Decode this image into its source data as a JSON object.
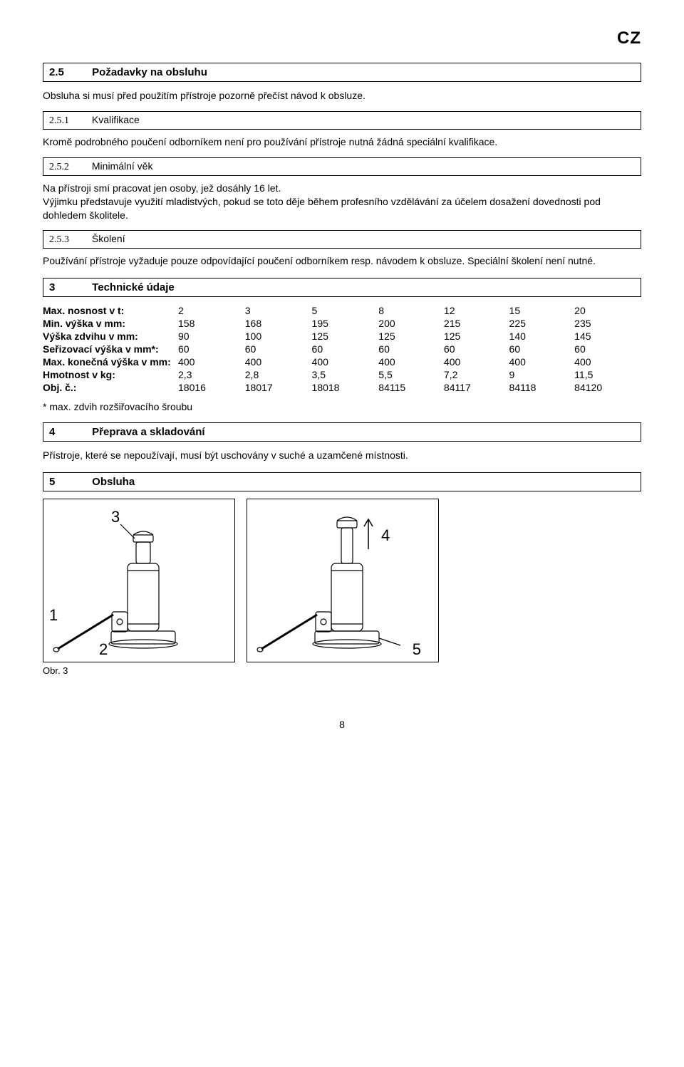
{
  "country_code": "CZ",
  "section_2_5": {
    "num": "2.5",
    "title": "Požadavky na obsluhu"
  },
  "p_intro": "Obsluha si musí před použitím přístroje pozorně přečíst návod k obsluze.",
  "sub_251": {
    "num": "2.5.1",
    "title": "Kvalifikace"
  },
  "p_251": "Kromě podrobného poučení odborníkem není pro používání přístroje nutná žádná speciální kvalifikace.",
  "sub_252": {
    "num": "2.5.2",
    "title": "Minimální věk"
  },
  "p_252": "Na přístroji smí pracovat jen osoby, jež dosáhly 16 let.\nVýjimku představuje využití mladistvých, pokud se toto děje během profesního vzdělávání za účelem dosažení dovednosti pod dohledem školitele.",
  "sub_253": {
    "num": "2.5.3",
    "title": "Školení"
  },
  "p_253": "Používání přístroje vyžaduje pouze odpovídající poučení odborníkem resp. návodem k obsluze. Speciální školení není nutné.",
  "section_3": {
    "num": "3",
    "title": "Technické údaje"
  },
  "table": {
    "rows": [
      {
        "label": "Max. nosnost v t:",
        "vals": [
          "2",
          "3",
          "5",
          "8",
          "12",
          "15",
          "20"
        ]
      },
      {
        "label": "Min. výška v mm:",
        "vals": [
          "158",
          "168",
          "195",
          "200",
          "215",
          "225",
          "235"
        ]
      },
      {
        "label": "Výška zdvihu v mm:",
        "vals": [
          "90",
          "100",
          "125",
          "125",
          "125",
          "140",
          "145"
        ]
      },
      {
        "label": "Seřizovací výška v mm*:",
        "vals": [
          "60",
          "60",
          "60",
          "60",
          "60",
          "60",
          "60"
        ]
      },
      {
        "label": "Max. konečná výška v mm:",
        "vals": [
          "400",
          "400",
          "400",
          "400",
          "400",
          "400",
          "400"
        ]
      },
      {
        "label": "Hmotnost v kg:",
        "vals": [
          "2,3",
          "2,8",
          "3,5",
          "5,5",
          "7,2",
          "9",
          "11,5"
        ]
      },
      {
        "label": "Obj. č.:",
        "vals": [
          "18016",
          "18017",
          "18018",
          "84115",
          "84117",
          "84118",
          "84120"
        ]
      }
    ]
  },
  "footnote": "* max. zdvih rozšiřovacího šroubu",
  "section_4": {
    "num": "4",
    "title": "Přeprava a skladování"
  },
  "p_4": "Přístroje, které se nepoužívají, musí být uschovány v suché a uzamčené místnosti.",
  "section_5": {
    "num": "5",
    "title": "Obsluha"
  },
  "figure": {
    "callouts_left": {
      "c1": "1",
      "c2": "2",
      "c3": "3"
    },
    "callouts_right": {
      "c4": "4",
      "c5": "5"
    },
    "caption": "Obr. 3",
    "stroke": "#000000",
    "fill": "#ffffff",
    "line_width": 1.2
  },
  "page_number": "8"
}
